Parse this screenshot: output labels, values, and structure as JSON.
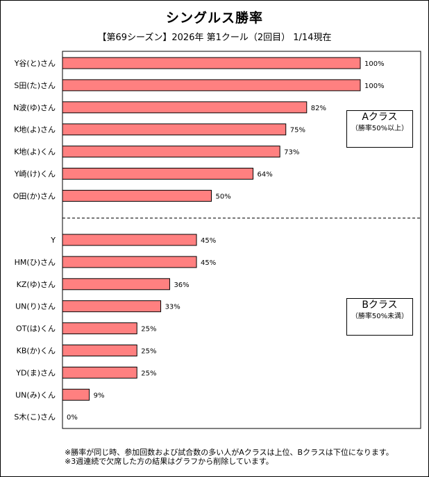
{
  "chart_data": {
    "type": "bar",
    "orientation": "horizontal",
    "title": "シングルス勝率",
    "subtitle": "【第69シーズン】2026年 第1クール（2回目） 1/14現在",
    "xlim": [
      0,
      100
    ],
    "value_suffix": "%",
    "bar_color": "#ff8080",
    "categories": [
      "Y谷(と)さん",
      "S田(た)さん",
      "N波(ゆ)さん",
      "K地(よ)さん",
      "K地(よ)くん",
      "Y崎(け)くん",
      "O田(か)さん",
      "Y",
      "HM(ひ)さん",
      "KZ(ゆ)さん",
      "UN(り)さん",
      "OT(は)くん",
      "KB(か)くん",
      "YD(ま)さん",
      "UN(み)くん",
      "S木(こ)さん"
    ],
    "values": [
      100,
      100,
      82,
      75,
      73,
      64,
      50,
      45,
      45,
      36,
      33,
      25,
      25,
      25,
      9,
      0
    ],
    "groups": [
      {
        "name": "Aクラス",
        "note": "（勝率50%以上）",
        "count": 7
      },
      {
        "name": "Bクラス",
        "note": "（勝率50%未満）",
        "count": 9
      }
    ]
  },
  "footnotes": [
    "※勝率が同じ時、参加回数および試合数の多い人がAクラスは上位、Bクラスは下位になります。",
    "※3週連続で欠席した方の結果はグラフから削除しています。"
  ]
}
